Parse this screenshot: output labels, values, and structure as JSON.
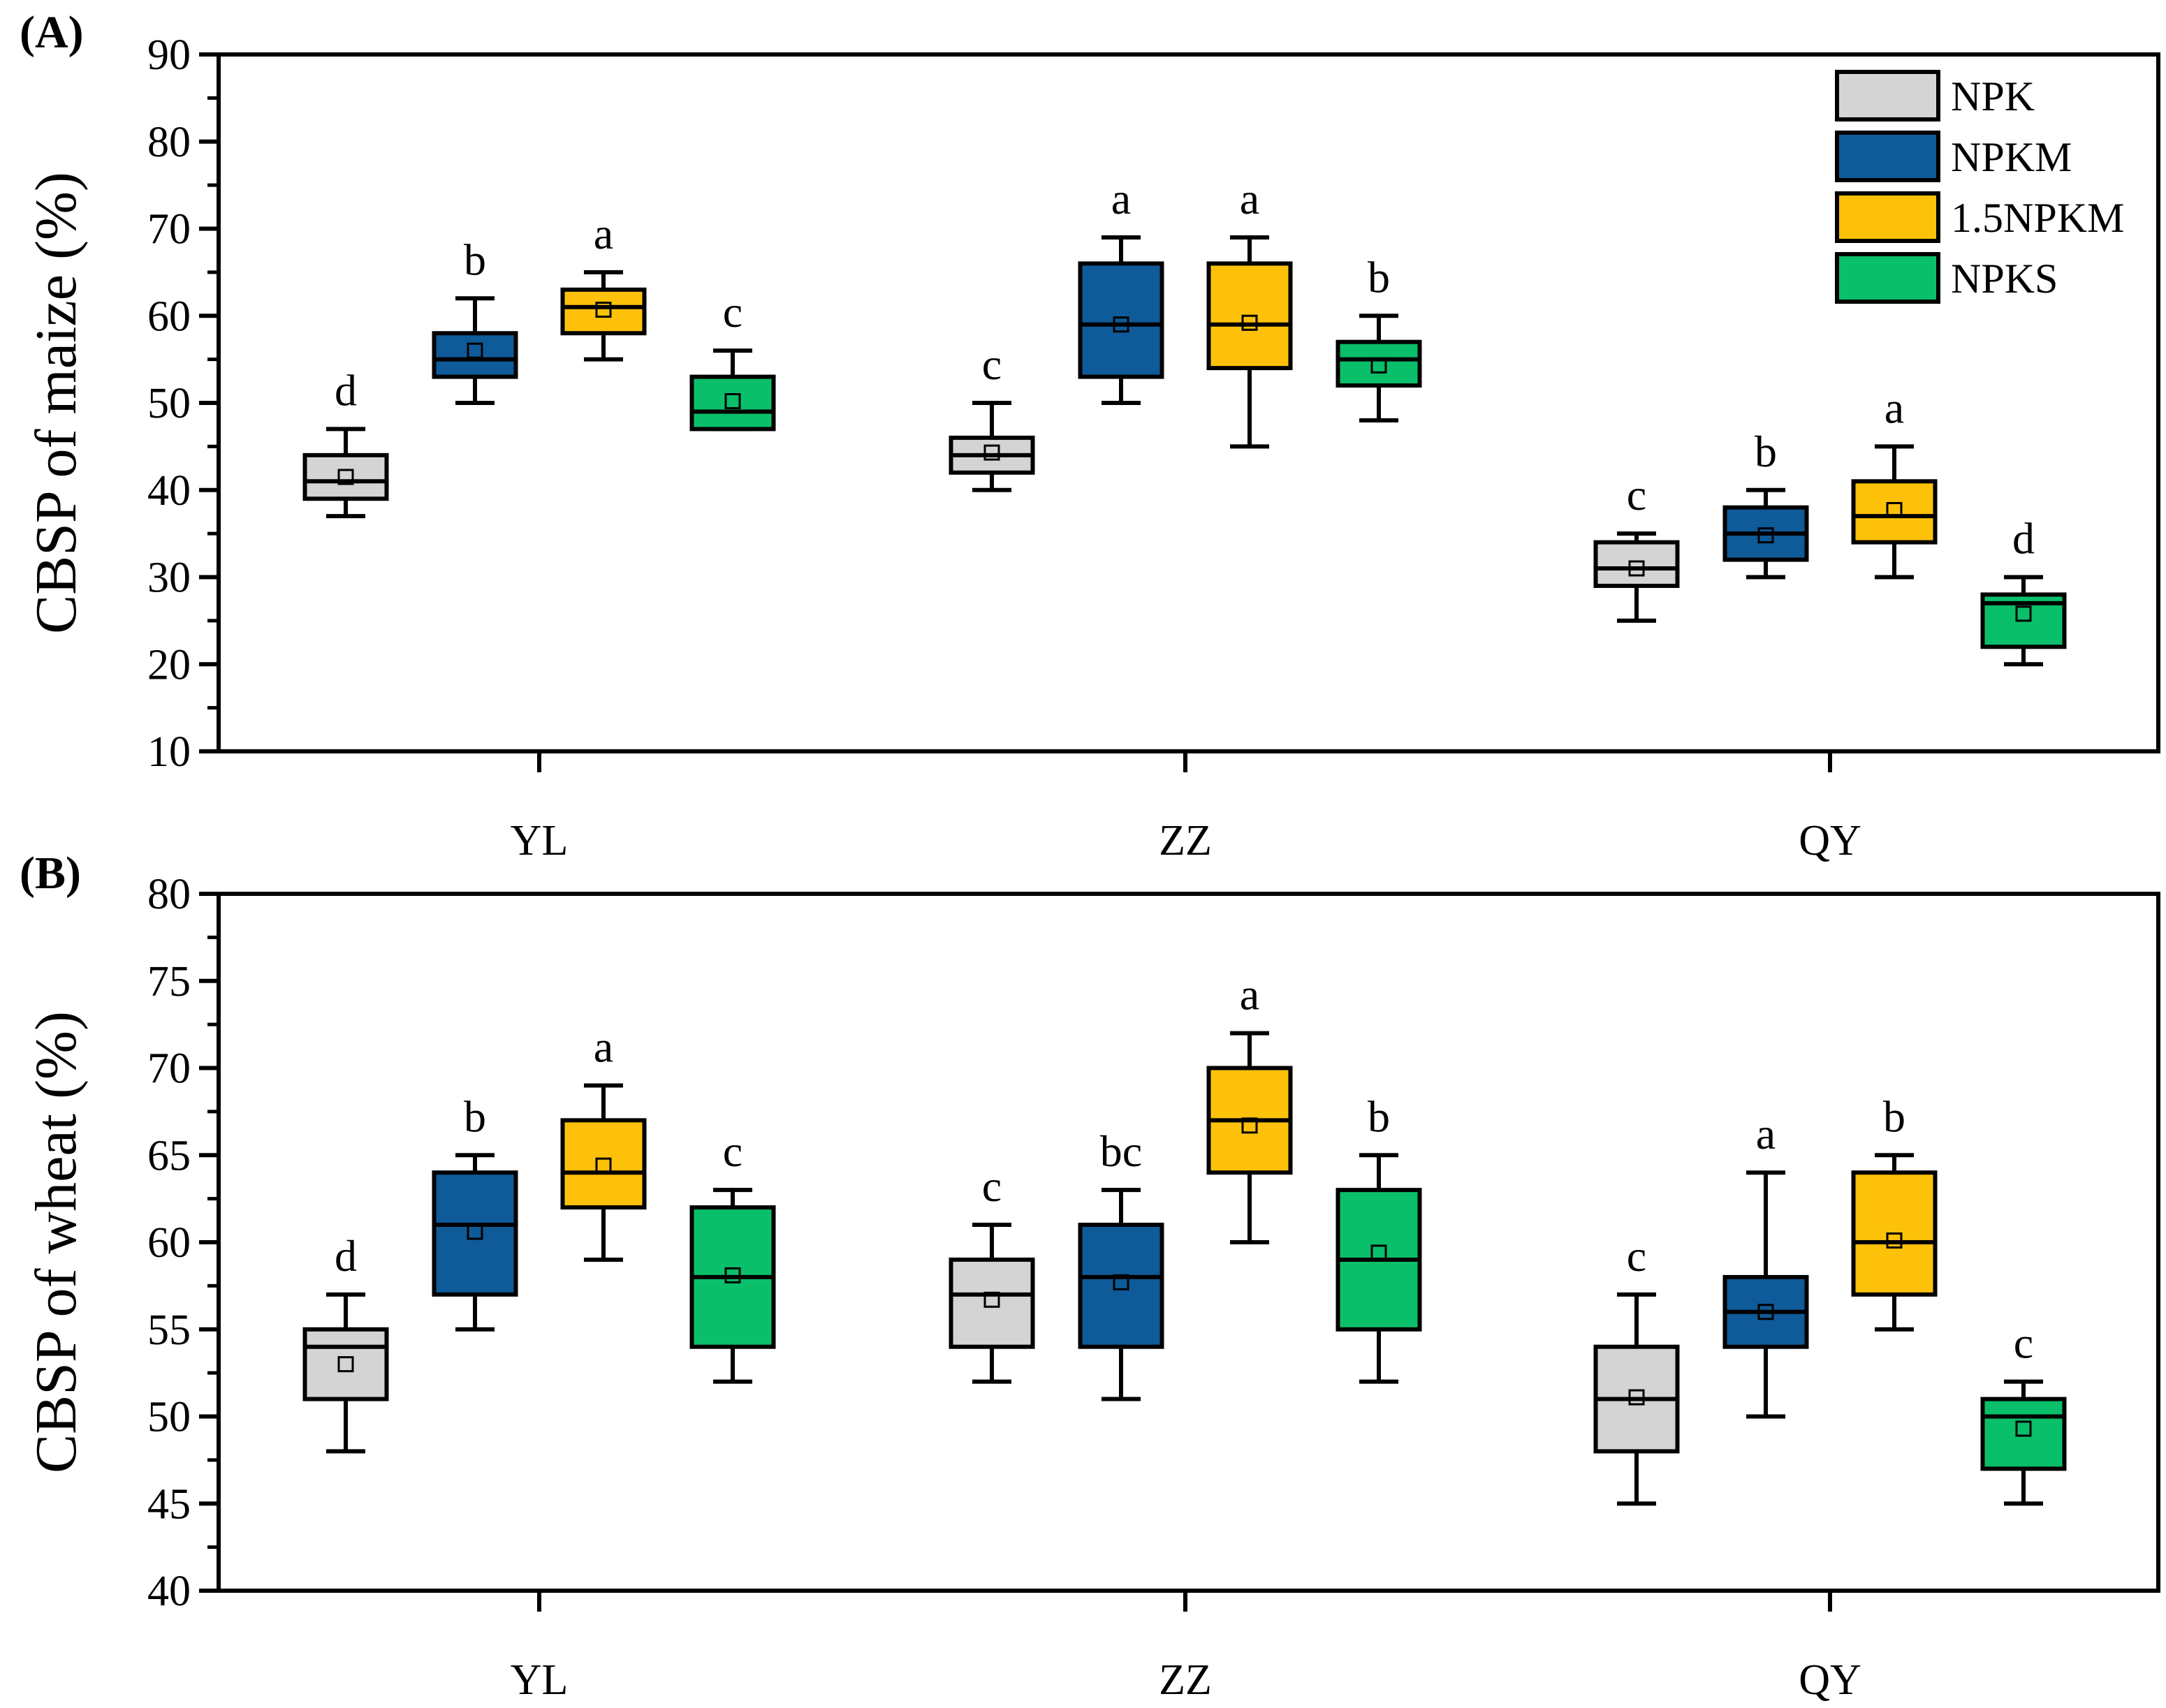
{
  "colors": {
    "NPK": "#d4d4d4",
    "NPKM": "#0f5a99",
    "1.5NPKM": "#fdc10a",
    "NPKS": "#0abf6a",
    "stroke": "#000000"
  },
  "legend": [
    "NPK",
    "NPKM",
    "1.5NPKM",
    "NPKS"
  ],
  "chart_data": [
    {
      "type": "box",
      "panel_label": "(A)",
      "title": "",
      "xlabel": "",
      "ylabel": "CBSP of maize (%)",
      "ylim": [
        10,
        90
      ],
      "yticks": [
        10,
        20,
        30,
        40,
        50,
        60,
        70,
        80,
        90
      ],
      "categories": [
        "YL",
        "ZZ",
        "QY"
      ],
      "series": [
        {
          "name": "NPK",
          "boxes": [
            {
              "min": 37,
              "q1": 39,
              "median": 41,
              "q3": 44,
              "max": 47,
              "mean": 41.5,
              "sig": "d"
            },
            {
              "min": 40,
              "q1": 42,
              "median": 44,
              "q3": 46,
              "max": 50,
              "mean": 44.3,
              "sig": "c"
            },
            {
              "min": 25,
              "q1": 29,
              "median": 31,
              "q3": 34,
              "max": 35,
              "mean": 31,
              "sig": "c"
            }
          ]
        },
        {
          "name": "NPKM",
          "boxes": [
            {
              "min": 50,
              "q1": 53,
              "median": 55,
              "q3": 58,
              "max": 62,
              "mean": 56,
              "sig": "b"
            },
            {
              "min": 50,
              "q1": 53,
              "median": 59,
              "q3": 66,
              "max": 69,
              "mean": 59,
              "sig": "a"
            },
            {
              "min": 30,
              "q1": 32,
              "median": 35,
              "q3": 38,
              "max": 40,
              "mean": 34.8,
              "sig": "b"
            }
          ]
        },
        {
          "name": "1.5NPKM",
          "boxes": [
            {
              "min": 55,
              "q1": 58,
              "median": 61,
              "q3": 63,
              "max": 65,
              "mean": 60.7,
              "sig": "a"
            },
            {
              "min": 45,
              "q1": 54,
              "median": 59,
              "q3": 66,
              "max": 69,
              "mean": 59.2,
              "sig": "a"
            },
            {
              "min": 30,
              "q1": 34,
              "median": 37,
              "q3": 41,
              "max": 45,
              "mean": 37.7,
              "sig": "a"
            }
          ]
        },
        {
          "name": "NPKS",
          "boxes": [
            {
              "min": 47,
              "q1": 47,
              "median": 49,
              "q3": 53,
              "max": 56,
              "mean": 50.2,
              "sig": "c"
            },
            {
              "min": 48,
              "q1": 52,
              "median": 55,
              "q3": 57,
              "max": 60,
              "mean": 54.3,
              "sig": "b"
            },
            {
              "min": 20,
              "q1": 22,
              "median": 27,
              "q3": 28,
              "max": 30,
              "mean": 25.8,
              "sig": "d"
            }
          ]
        }
      ]
    },
    {
      "type": "box",
      "panel_label": "(B)",
      "title": "",
      "xlabel": "",
      "ylabel": "CBSP of wheat (%)",
      "ylim": [
        40,
        80
      ],
      "yticks": [
        40,
        45,
        50,
        55,
        60,
        65,
        70,
        75,
        80
      ],
      "categories": [
        "YL",
        "ZZ",
        "QY"
      ],
      "series": [
        {
          "name": "NPK",
          "boxes": [
            {
              "min": 48,
              "q1": 51,
              "median": 54,
              "q3": 55,
              "max": 57,
              "mean": 53,
              "sig": "d"
            },
            {
              "min": 52,
              "q1": 54,
              "median": 57,
              "q3": 59,
              "max": 61,
              "mean": 56.7,
              "sig": "c"
            },
            {
              "min": 45,
              "q1": 48,
              "median": 51,
              "q3": 54,
              "max": 57,
              "mean": 51.1,
              "sig": "c"
            }
          ]
        },
        {
          "name": "NPKM",
          "boxes": [
            {
              "min": 55,
              "q1": 57,
              "median": 61,
              "q3": 64,
              "max": 65,
              "mean": 60.6,
              "sig": "b"
            },
            {
              "min": 51,
              "q1": 54,
              "median": 58,
              "q3": 61,
              "max": 63,
              "mean": 57.7,
              "sig": "bc"
            },
            {
              "min": 50,
              "q1": 54,
              "median": 56,
              "q3": 58,
              "max": 64,
              "mean": 56,
              "sig": "a"
            }
          ]
        },
        {
          "name": "1.5NPKM",
          "boxes": [
            {
              "min": 59,
              "q1": 62,
              "median": 64,
              "q3": 67,
              "max": 69,
              "mean": 64.4,
              "sig": "a"
            },
            {
              "min": 60,
              "q1": 64,
              "median": 67,
              "q3": 70,
              "max": 72,
              "mean": 66.7,
              "sig": "a"
            },
            {
              "min": 55,
              "q1": 57,
              "median": 60,
              "q3": 64,
              "max": 65,
              "mean": 60.1,
              "sig": "b"
            }
          ]
        },
        {
          "name": "NPKS",
          "boxes": [
            {
              "min": 52,
              "q1": 54,
              "median": 58,
              "q3": 62,
              "max": 63,
              "mean": 58.1,
              "sig": "c"
            },
            {
              "min": 52,
              "q1": 55,
              "median": 59,
              "q3": 63,
              "max": 65,
              "mean": 59.4,
              "sig": "b"
            },
            {
              "min": 45,
              "q1": 47,
              "median": 50,
              "q3": 51,
              "max": 52,
              "mean": 49.3,
              "sig": "c"
            }
          ]
        }
      ]
    }
  ]
}
